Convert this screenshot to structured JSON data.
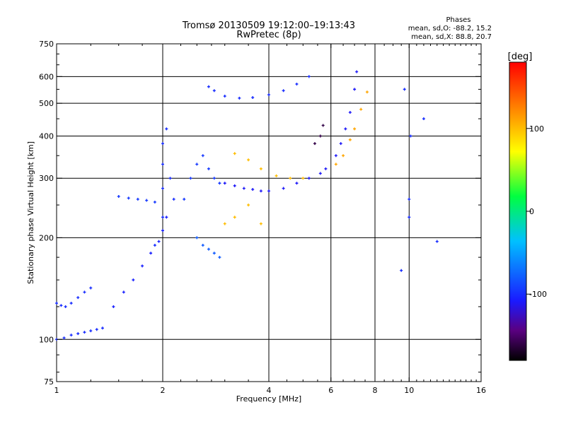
{
  "chart_data": {
    "type": "scatter",
    "title": "Tromsø 20130509 19:12:00–19:13:43",
    "subtitle": "RwPretec (8p)",
    "xlabel": "Frequency [MHz]",
    "ylabel": "Stationary phase Virtual Height [km]",
    "x_scale": "log2",
    "y_scale": "log",
    "xlim": [
      1,
      16
    ],
    "ylim": [
      75,
      750
    ],
    "grid": true,
    "x_ticks": [
      1,
      2,
      4,
      6,
      8,
      10,
      16
    ],
    "x_tick_labels": [
      "1",
      "2",
      "4",
      "6",
      "8",
      "10",
      "16"
    ],
    "y_ticks": [
      75,
      100,
      200,
      300,
      400,
      500,
      600,
      750
    ],
    "y_tick_labels": [
      "75",
      "100",
      "200",
      "300",
      "400",
      "500",
      "600",
      "750"
    ],
    "stats": {
      "heading": "Phases",
      "line1": "mean, sd,O: -88.2, 15.2",
      "line2": "mean, sd,X:  88.8, 20.7"
    },
    "colorbar": {
      "label": "[deg]",
      "range": [
        -180,
        180
      ],
      "ticks": [
        100,
        0,
        -100
      ],
      "tick_labels": [
        "100",
        "0",
        "-100"
      ]
    },
    "series": [
      {
        "points": [
          [
            1.0,
            128
          ],
          [
            1.03,
            126
          ],
          [
            1.06,
            125
          ],
          [
            1.1,
            128
          ],
          [
            1.15,
            133
          ],
          [
            1.2,
            138
          ],
          [
            1.25,
            142
          ]
        ],
        "phase": -100
      },
      {
        "points": [
          [
            1.0,
            100
          ],
          [
            1.05,
            101
          ],
          [
            1.1,
            103
          ],
          [
            1.15,
            104
          ],
          [
            1.2,
            105
          ],
          [
            1.25,
            106
          ],
          [
            1.3,
            107
          ],
          [
            1.35,
            108
          ]
        ],
        "phase": -100
      },
      {
        "points": [
          [
            1.45,
            125
          ],
          [
            1.55,
            138
          ],
          [
            1.65,
            150
          ],
          [
            1.75,
            165
          ],
          [
            1.85,
            180
          ],
          [
            1.95,
            195
          ],
          [
            2.0,
            210
          ],
          [
            2.05,
            230
          ]
        ],
        "phase": -105
      },
      {
        "points": [
          [
            1.5,
            265
          ],
          [
            1.6,
            262
          ],
          [
            1.7,
            260
          ],
          [
            1.8,
            258
          ],
          [
            1.9,
            255
          ]
        ],
        "phase": -95
      },
      {
        "points": [
          [
            1.9,
            190
          ],
          [
            2.0,
            230
          ],
          [
            2.0,
            280
          ],
          [
            2.0,
            330
          ],
          [
            2.0,
            380
          ],
          [
            2.05,
            420
          ],
          [
            2.1,
            300
          ],
          [
            2.15,
            260
          ]
        ],
        "phase": -100
      },
      {
        "points": [
          [
            2.3,
            260
          ],
          [
            2.4,
            300
          ],
          [
            2.5,
            330
          ],
          [
            2.6,
            350
          ],
          [
            2.7,
            320
          ],
          [
            2.8,
            300
          ],
          [
            2.9,
            290
          ]
        ],
        "phase": -95
      },
      {
        "points": [
          [
            2.5,
            200
          ],
          [
            2.6,
            190
          ],
          [
            2.7,
            185
          ],
          [
            2.8,
            180
          ],
          [
            2.9,
            175
          ]
        ],
        "phase": -80
      },
      {
        "points": [
          [
            2.7,
            560
          ],
          [
            2.8,
            545
          ],
          [
            3.0,
            525
          ],
          [
            3.3,
            518
          ],
          [
            3.6,
            520
          ],
          [
            4.0,
            530
          ],
          [
            4.4,
            545
          ],
          [
            4.8,
            570
          ],
          [
            5.2,
            600
          ]
        ],
        "phase": -100
      },
      {
        "points": [
          [
            3.0,
            290
          ],
          [
            3.2,
            285
          ],
          [
            3.4,
            280
          ],
          [
            3.6,
            278
          ],
          [
            3.8,
            275
          ],
          [
            4.0,
            275
          ],
          [
            4.4,
            280
          ],
          [
            4.8,
            290
          ],
          [
            5.2,
            300
          ],
          [
            5.6,
            310
          ],
          [
            5.8,
            320
          ]
        ],
        "phase": -110
      },
      {
        "points": [
          [
            3.2,
            355
          ],
          [
            3.5,
            340
          ],
          [
            3.8,
            320
          ],
          [
            4.2,
            305
          ],
          [
            4.6,
            300
          ],
          [
            5.0,
            300
          ]
        ],
        "phase": 100
      },
      {
        "points": [
          [
            5.4,
            380
          ],
          [
            5.6,
            400
          ],
          [
            5.7,
            430
          ]
        ],
        "phase": -160
      },
      {
        "points": [
          [
            6.2,
            350
          ],
          [
            6.4,
            380
          ],
          [
            6.6,
            420
          ],
          [
            6.8,
            470
          ],
          [
            7.0,
            550
          ],
          [
            7.1,
            620
          ]
        ],
        "phase": -110
      },
      {
        "points": [
          [
            6.2,
            330
          ],
          [
            6.5,
            350
          ],
          [
            6.8,
            390
          ],
          [
            7.0,
            420
          ],
          [
            7.3,
            480
          ],
          [
            7.6,
            540
          ]
        ],
        "phase": 110
      },
      {
        "points": [
          [
            3.0,
            220
          ],
          [
            3.2,
            230
          ],
          [
            3.5,
            250
          ],
          [
            3.8,
            220
          ]
        ],
        "phase": 100
      },
      {
        "points": [
          [
            10.0,
            260
          ],
          [
            10.0,
            230
          ],
          [
            10.1,
            400
          ],
          [
            11.0,
            450
          ],
          [
            12.0,
            195
          ],
          [
            9.5,
            160
          ],
          [
            9.7,
            550
          ]
        ],
        "phase": -100
      }
    ]
  }
}
